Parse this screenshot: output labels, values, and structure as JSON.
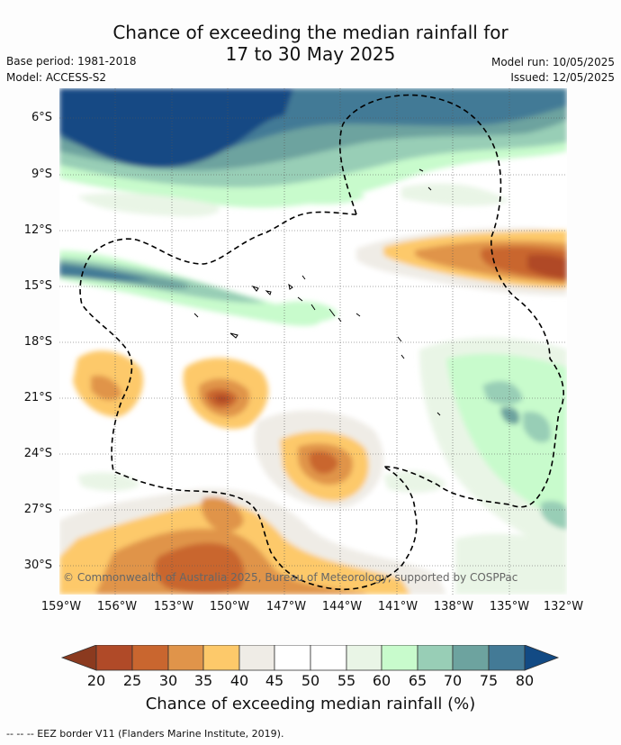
{
  "title": {
    "line1": "Chance of exceeding the median rainfall for",
    "line2": "17 to 30 May 2025"
  },
  "meta": {
    "base_period": "Base period: 1981-2018",
    "model": "Model: ACCESS-S2",
    "model_run": "Model run: 10/05/2025",
    "issued": "Issued: 12/05/2025"
  },
  "map": {
    "lat_labels": [
      "6°S",
      "9°S",
      "12°S",
      "15°S",
      "18°S",
      "21°S",
      "24°S",
      "27°S",
      "30°S"
    ],
    "lon_labels": [
      "159°W",
      "156°W",
      "153°W",
      "150°W",
      "147°W",
      "144°W",
      "141°W",
      "138°W",
      "135°W",
      "132°W"
    ],
    "lon_range": [
      -159,
      -132
    ],
    "lat_range": [
      -4.5,
      -31.5
    ],
    "copyright": "© Commonwealth of Australia 2025, Bureau of Meteorology, supported by COSPPac"
  },
  "colorbar": {
    "title": "Chance of exceeding median rainfall (%)",
    "ticks": [
      "20",
      "25",
      "30",
      "35",
      "40",
      "45",
      "50",
      "55",
      "60",
      "65",
      "70",
      "75",
      "80"
    ],
    "colors": [
      "#8b3a1f",
      "#b04a28",
      "#c9662f",
      "#e0944a",
      "#fdc96a",
      "#efece6",
      "#ffffff",
      "#ffffff",
      "#e9f5e6",
      "#c8fbcc",
      "#98ceb6",
      "#6da39f",
      "#437a96",
      "#124a84"
    ],
    "color_names": [
      "<20",
      "20-25",
      "25-30",
      "30-35",
      "35-40",
      "40-45",
      "45-50",
      "50-55",
      "55-60",
      "60-65",
      "65-70",
      "70-75",
      "75-80",
      ">80"
    ]
  },
  "eez_note": "--  --  -- EEZ border V11 (Flanders Marine Institute, 2019)."
}
